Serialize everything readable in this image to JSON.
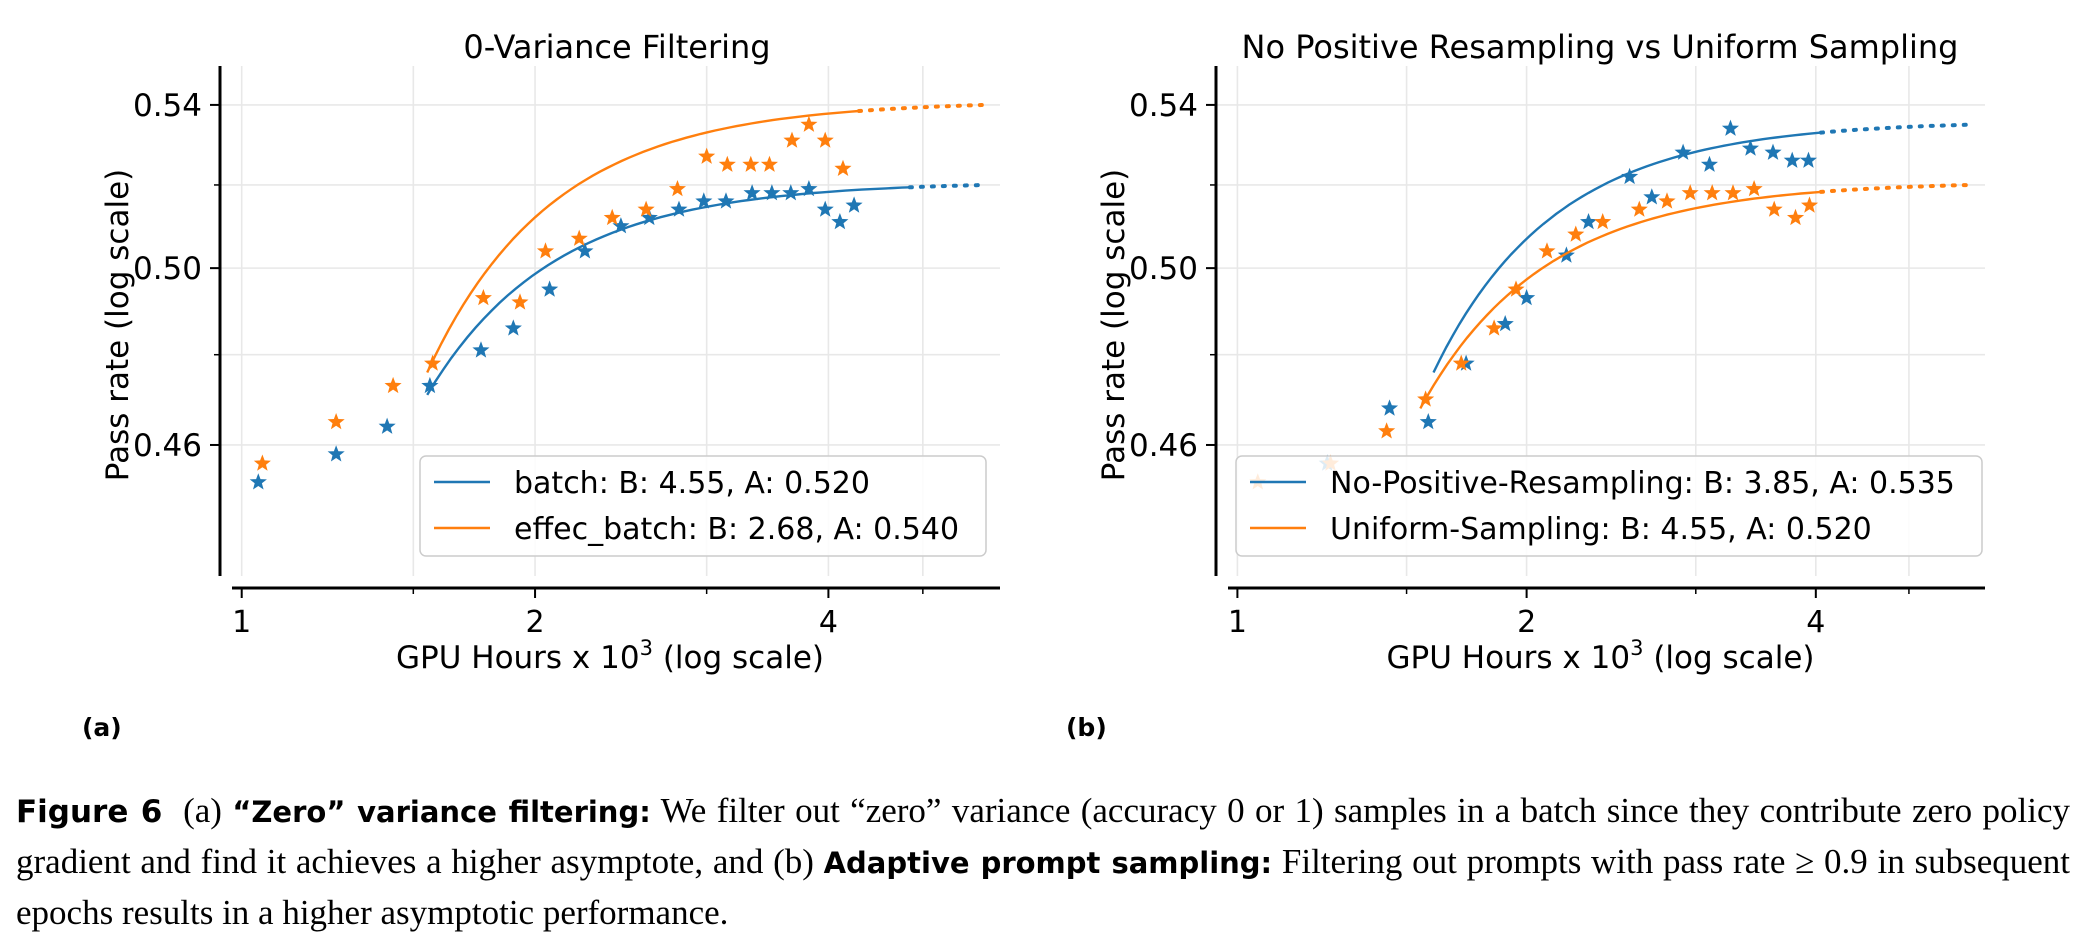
{
  "figure": {
    "caption_label": "Figure 6",
    "caption_a_marker": "(a)",
    "caption_a_title": "“Zero” variance filtering:",
    "caption_a_text": "We filter out “zero” variance (accuracy 0 or 1) samples in a batch since they contribute zero policy gradient and find it achieves a higher asymptote, and",
    "caption_b_marker": "(b)",
    "caption_b_title": "Adaptive prompt sampling:",
    "caption_b_text": "Filtering out prompts with pass rate ≥ 0.9 in subsequent epochs results in a higher asymptotic performance."
  },
  "colors": {
    "blue": "#1f77b4",
    "orange": "#ff7f0e"
  },
  "chart_data": [
    {
      "type": "scatter",
      "panel_label": "(a)",
      "title": "0-Variance Filtering",
      "xlabel": "GPU Hours x 10",
      "xlabel_sup": "3",
      "xlabel_suffix": " (log scale)",
      "ylabel": "Pass rate (log scale)",
      "xscale": "log",
      "yscale": "log",
      "xlim": [
        0.95,
        6.0
      ],
      "ylim": [
        0.43,
        0.55
      ],
      "xticks": [
        1,
        2,
        4
      ],
      "xtick_labels": [
        "1",
        "2",
        "4"
      ],
      "yticks": [
        0.46,
        0.5,
        0.54
      ],
      "ytick_labels": [
        "0.46",
        "0.50",
        "0.54"
      ],
      "grid": true,
      "legend_position": "lower-right",
      "series": [
        {
          "name": "batch: B: 4.55, A: 0.520",
          "color": "#1f77b4",
          "points": [
            [
              1.04,
              0.452
            ],
            [
              1.25,
              0.458
            ],
            [
              1.41,
              0.464
            ],
            [
              1.56,
              0.473
            ],
            [
              1.76,
              0.481
            ],
            [
              1.9,
              0.486
            ],
            [
              2.07,
              0.495
            ],
            [
              2.25,
              0.504
            ],
            [
              2.45,
              0.51
            ],
            [
              2.62,
              0.512
            ],
            [
              2.81,
              0.514
            ],
            [
              2.98,
              0.516
            ],
            [
              3.14,
              0.516
            ],
            [
              3.34,
              0.518
            ],
            [
              3.5,
              0.518
            ],
            [
              3.66,
              0.518
            ],
            [
              3.82,
              0.519
            ],
            [
              3.97,
              0.514
            ],
            [
              4.11,
              0.511
            ],
            [
              4.25,
              0.515
            ]
          ],
          "fit": {
            "B": 4.55,
            "A": 0.52,
            "x_start": 1.55,
            "x_end": 4.85,
            "x_extrap_end": 5.8
          }
        },
        {
          "name": "effec_batch: B: 2.68, A: 0.540",
          "color": "#ff7f0e",
          "points": [
            [
              1.05,
              0.456
            ],
            [
              1.25,
              0.465
            ],
            [
              1.43,
              0.473
            ],
            [
              1.57,
              0.478
            ],
            [
              1.77,
              0.493
            ],
            [
              1.93,
              0.492
            ],
            [
              2.05,
              0.504
            ],
            [
              2.22,
              0.507
            ],
            [
              2.4,
              0.512
            ],
            [
              2.6,
              0.514
            ],
            [
              2.8,
              0.519
            ],
            [
              3.0,
              0.527
            ],
            [
              3.15,
              0.525
            ],
            [
              3.33,
              0.525
            ],
            [
              3.48,
              0.525
            ],
            [
              3.67,
              0.531
            ],
            [
              3.82,
              0.535
            ],
            [
              3.97,
              0.531
            ],
            [
              4.14,
              0.524
            ]
          ],
          "fit": {
            "B": 2.68,
            "A": 0.54,
            "x_start": 1.55,
            "x_end": 4.3,
            "x_extrap_end": 5.8
          }
        }
      ]
    },
    {
      "type": "scatter",
      "panel_label": "(b)",
      "title": "No Positive Resampling vs Uniform Sampling",
      "xlabel": "GPU Hours x 10",
      "xlabel_sup": "3",
      "xlabel_suffix": " (log scale)",
      "ylabel": "Pass rate (log scale)",
      "xscale": "log",
      "yscale": "log",
      "xlim": [
        0.95,
        6.0
      ],
      "ylim": [
        0.43,
        0.55
      ],
      "xticks": [
        1,
        2,
        4
      ],
      "xtick_labels": [
        "1",
        "2",
        "4"
      ],
      "yticks": [
        0.46,
        0.5,
        0.54
      ],
      "ytick_labels": [
        "0.46",
        "0.50",
        "0.54"
      ],
      "grid": true,
      "legend_position": "lower-right",
      "series": [
        {
          "name": "No-Positive-Resampling: B: 3.85, A: 0.535",
          "color": "#1f77b4",
          "points": [
            [
              1.24,
              0.456
            ],
            [
              1.44,
              0.468
            ],
            [
              1.58,
              0.465
            ],
            [
              1.73,
              0.478
            ],
            [
              1.9,
              0.487
            ],
            [
              2.0,
              0.493
            ],
            [
              2.2,
              0.503
            ],
            [
              2.32,
              0.511
            ],
            [
              2.56,
              0.522
            ],
            [
              2.7,
              0.517
            ],
            [
              2.91,
              0.528
            ],
            [
              3.1,
              0.525
            ],
            [
              3.26,
              0.534
            ],
            [
              3.42,
              0.529
            ],
            [
              3.61,
              0.528
            ],
            [
              3.78,
              0.526
            ],
            [
              3.93,
              0.526
            ]
          ],
          "fit": {
            "B": 3.85,
            "A": 0.535,
            "x_start": 1.6,
            "x_end": 4.05,
            "x_extrap_end": 5.8
          }
        },
        {
          "name": "Uniform-Sampling: B: 4.55, A: 0.520",
          "color": "#ff7f0e",
          "points": [
            [
              1.05,
              0.452
            ],
            [
              1.25,
              0.456
            ],
            [
              1.43,
              0.463
            ],
            [
              1.57,
              0.47
            ],
            [
              1.71,
              0.478
            ],
            [
              1.85,
              0.486
            ],
            [
              1.95,
              0.495
            ],
            [
              2.1,
              0.504
            ],
            [
              2.25,
              0.508
            ],
            [
              2.4,
              0.511
            ],
            [
              2.62,
              0.514
            ],
            [
              2.8,
              0.516
            ],
            [
              2.96,
              0.518
            ],
            [
              3.12,
              0.518
            ],
            [
              3.28,
              0.518
            ],
            [
              3.45,
              0.519
            ],
            [
              3.62,
              0.514
            ],
            [
              3.81,
              0.512
            ],
            [
              3.94,
              0.515
            ]
          ],
          "fit": {
            "B": 4.55,
            "A": 0.52,
            "x_start": 1.55,
            "x_end": 4.05,
            "x_extrap_end": 5.8
          }
        }
      ]
    }
  ]
}
